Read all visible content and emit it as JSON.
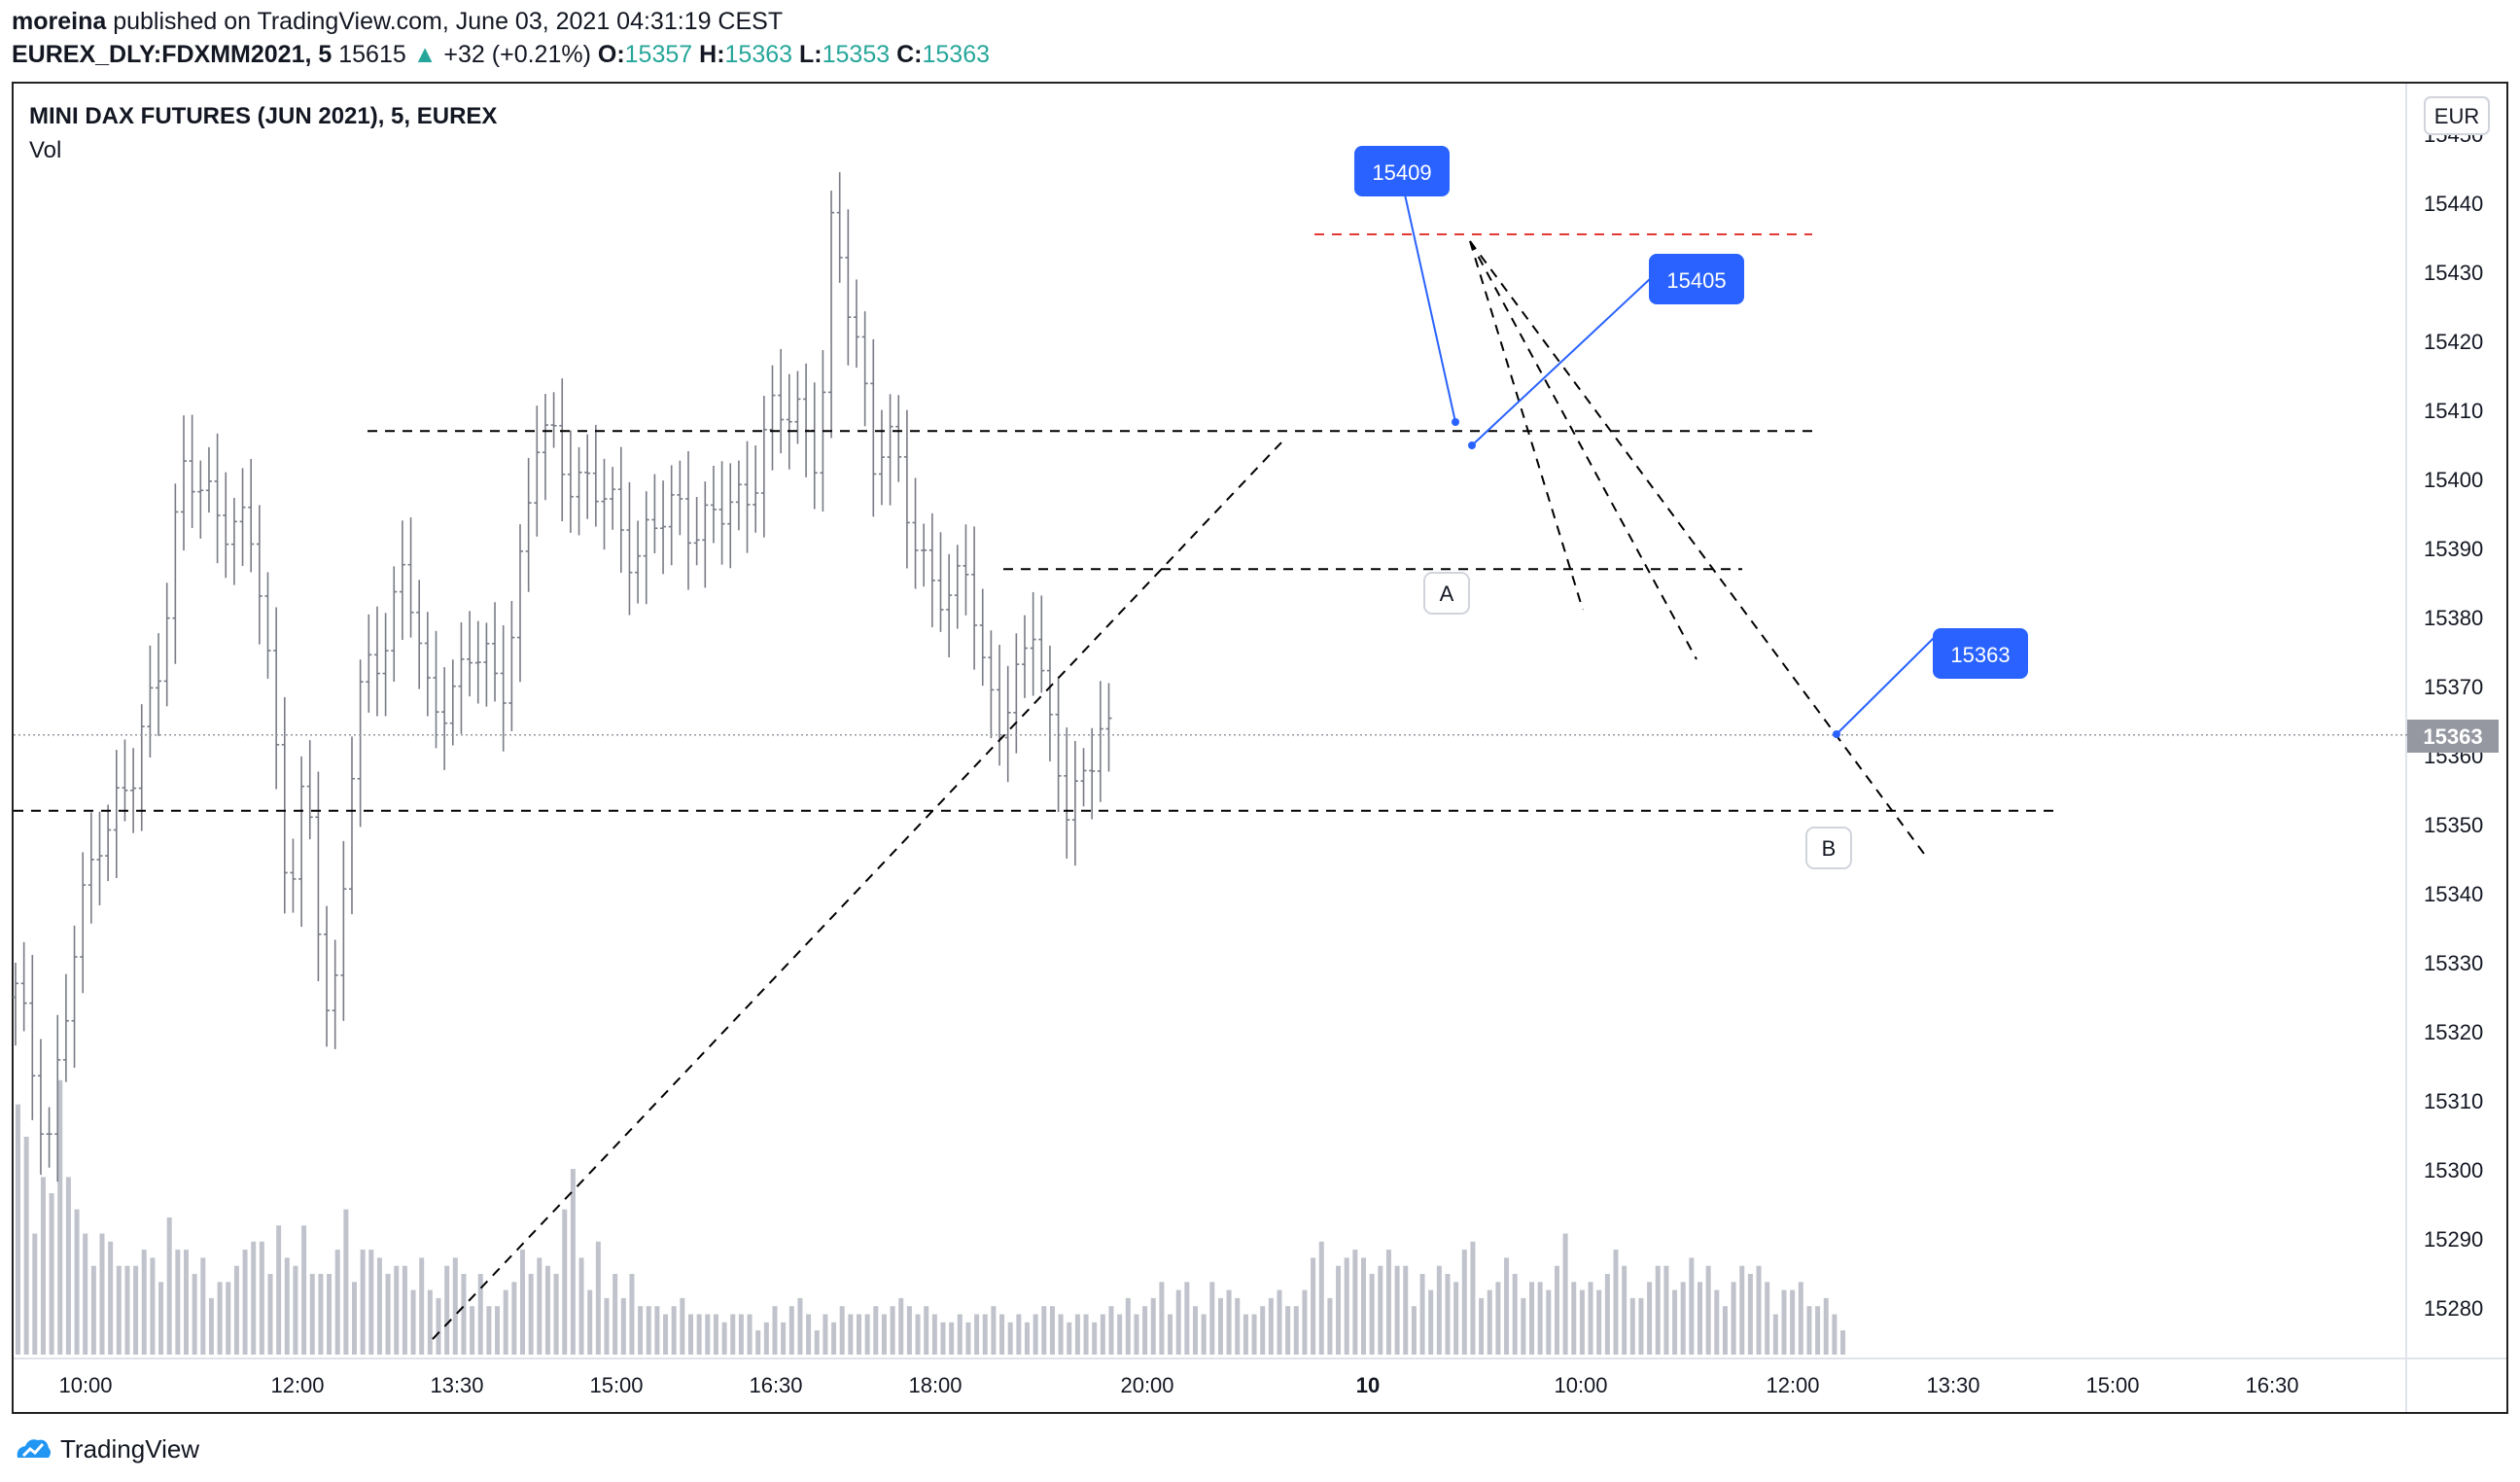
{
  "header": {
    "author": "moreina",
    "published_text": "published on TradingView.com, June 03, 2021 04:31:19 CEST",
    "symbol": "EUREX_DLY:FDXMM2021, 5",
    "last": "15615",
    "change_arrow": "▲",
    "change": "+32 (+0.21%)",
    "o_label": "O:",
    "o_value": "15357",
    "h_label": "H:",
    "h_value": "15363",
    "l_label": "L:",
    "l_value": "15353",
    "c_label": "C:",
    "c_value": "15363"
  },
  "chart_title": "MINI DAX FUTURES (JUN 2021), 5, EUREX",
  "volume_label": "Vol",
  "currency": "EUR",
  "current_price_label": "15363",
  "footer": {
    "brand": "TradingView",
    "logo_icon": "tradingview-logo-icon"
  },
  "colors": {
    "candle": "#787b86",
    "volume": "#c0c3cc",
    "callout": "#2962ff",
    "red_line": "#e53935",
    "price_tag": "#9598a1"
  },
  "chart_data": {
    "type": "ohlc",
    "y_axis": {
      "ticks": [
        15280,
        15290,
        15300,
        15310,
        15320,
        15330,
        15340,
        15350,
        15360,
        15370,
        15380,
        15390,
        15400,
        15410,
        15420,
        15430,
        15440,
        15450
      ],
      "range": [
        15274,
        15452
      ]
    },
    "x_ticks": [
      "10:00",
      "12:00",
      "13:30",
      "15:00",
      "16:30",
      "18:00",
      "20:00",
      "10",
      "10:00",
      "12:00",
      "13:30",
      "15:00",
      "16:30"
    ],
    "x_tick_bold": "10",
    "volume_bars": [
      31,
      27,
      15,
      22,
      20,
      34,
      22,
      18,
      15,
      11,
      15,
      14,
      11,
      11,
      11,
      13,
      12,
      9,
      17,
      13,
      13,
      10,
      12,
      7,
      9,
      9,
      11,
      13,
      14,
      14,
      10,
      16,
      12,
      11,
      16,
      10,
      10,
      10,
      13,
      18,
      9,
      13,
      13,
      12,
      10,
      11,
      11,
      8,
      12,
      8,
      7,
      11,
      12,
      10,
      6,
      10,
      6,
      6,
      8,
      9,
      13,
      10,
      12,
      11,
      10,
      18,
      23,
      12,
      8,
      14,
      7,
      10,
      7,
      10,
      6,
      6,
      6,
      5,
      6,
      7,
      5,
      5,
      5,
      5,
      4,
      5,
      5,
      5,
      3,
      4,
      6,
      4,
      6,
      7,
      5,
      3,
      5,
      4,
      6,
      5,
      5,
      5,
      6,
      5,
      6,
      7,
      6,
      5,
      6,
      5,
      4,
      4,
      5,
      4,
      5,
      5,
      6,
      5,
      4,
      5,
      4,
      5,
      6,
      6,
      5,
      4,
      5,
      5,
      4,
      5,
      6,
      5,
      7,
      5,
      6,
      7,
      9,
      5,
      8,
      9,
      6,
      5,
      9,
      7,
      8,
      7,
      5,
      5,
      6,
      7,
      8,
      6,
      6,
      8,
      12,
      14,
      7,
      11,
      12,
      13,
      12,
      10,
      11,
      13,
      11,
      11,
      6,
      10,
      8,
      11,
      10,
      9,
      13,
      14,
      7,
      8,
      9,
      12,
      10,
      7,
      9,
      9,
      8,
      11,
      15,
      9,
      8,
      9,
      8,
      10,
      13,
      11,
      7,
      7,
      9,
      11,
      11,
      8,
      9,
      12,
      9,
      11,
      8,
      6,
      9,
      11,
      10,
      11,
      9,
      5,
      8,
      8,
      9,
      6,
      6,
      7,
      5,
      3
    ],
    "volume_note": "volume values are relative bar heights (no volume axis shown)",
    "horizontal_lines": [
      {
        "value": 15435.5,
        "style": "dashed",
        "color": "red"
      },
      {
        "value": 15407,
        "style": "dashed",
        "color": "black"
      },
      {
        "value": 15387,
        "style": "dashed",
        "color": "black"
      },
      {
        "value": 15352,
        "style": "dashed",
        "color": "black"
      }
    ],
    "callouts": [
      "15409",
      "15405",
      "15363"
    ],
    "point_labels": [
      "A",
      "B"
    ],
    "current_price": 15363
  }
}
